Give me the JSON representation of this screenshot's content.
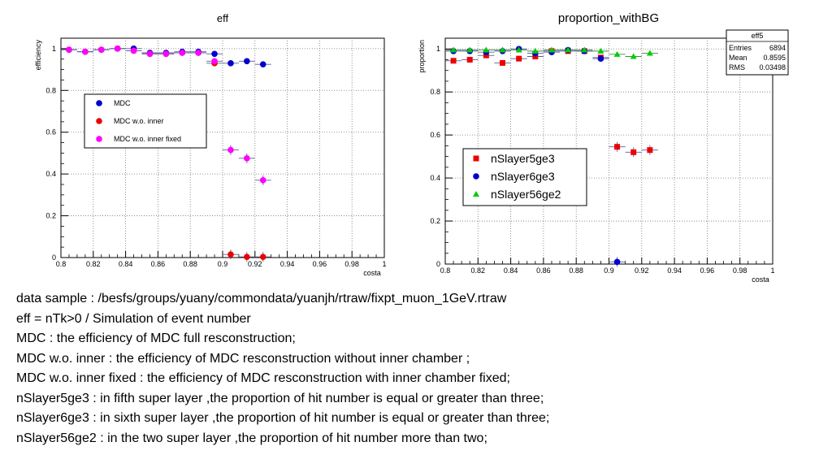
{
  "chart_data": [
    {
      "type": "scatter",
      "title": "eff",
      "xlabel": "costa",
      "ylabel": "efficiency",
      "xlim": [
        0.8,
        1.0
      ],
      "ylim": [
        0,
        1.05
      ],
      "x_ticks": [
        "0.8",
        "0.82",
        "0.84",
        "0.86",
        "0.88",
        "0.9",
        "0.92",
        "0.94",
        "0.96",
        "0.98",
        "1"
      ],
      "y_ticks": [
        "0",
        "0.2",
        "0.4",
        "0.6",
        "0.8",
        "1"
      ],
      "grid": true,
      "legend_position": "middle-left",
      "series": [
        {
          "name": "MDC",
          "color": "#0000cc",
          "x": [
            0.805,
            0.815,
            0.825,
            0.835,
            0.845,
            0.855,
            0.865,
            0.875,
            0.885,
            0.895,
            0.905,
            0.915,
            0.925
          ],
          "y": [
            0.995,
            0.985,
            0.995,
            1.0,
            1.0,
            0.98,
            0.98,
            0.985,
            0.985,
            0.975,
            0.93,
            0.94,
            0.925
          ]
        },
        {
          "name": "MDC w.o. inner",
          "color": "#ee0000",
          "x": [
            0.805,
            0.815,
            0.825,
            0.835,
            0.845,
            0.855,
            0.865,
            0.875,
            0.885,
            0.895,
            0.905,
            0.915,
            0.925
          ],
          "y": [
            0.995,
            0.985,
            0.995,
            1.0,
            0.99,
            0.975,
            0.975,
            0.98,
            0.98,
            0.93,
            0.015,
            0.003,
            0.003
          ]
        },
        {
          "name": "MDC w.o. inner fixed",
          "color": "#ff00ff",
          "x": [
            0.805,
            0.815,
            0.825,
            0.835,
            0.845,
            0.855,
            0.865,
            0.875,
            0.885,
            0.895,
            0.905,
            0.915,
            0.925
          ],
          "y": [
            0.995,
            0.985,
            0.995,
            1.0,
            0.99,
            0.975,
            0.975,
            0.98,
            0.98,
            0.94,
            0.515,
            0.475,
            0.37
          ]
        }
      ]
    },
    {
      "type": "scatter",
      "title": "proportion_withBG",
      "xlabel": "costa",
      "ylabel": "proportion",
      "xlim": [
        0.8,
        1.0
      ],
      "ylim": [
        0,
        1.05
      ],
      "x_ticks": [
        "0.8",
        "0.82",
        "0.84",
        "0.86",
        "0.88",
        "0.9",
        "0.92",
        "0.94",
        "0.96",
        "0.98",
        "1"
      ],
      "y_ticks": [
        "0",
        "0.2",
        "0.4",
        "0.6",
        "0.8",
        "1"
      ],
      "grid": true,
      "legend_position": "middle-left",
      "stats": {
        "name": "eff5",
        "rows": [
          {
            "label": "Entries",
            "value": "6894"
          },
          {
            "label": "Mean",
            "value": "0.8595"
          },
          {
            "label": "RMS",
            "value": "0.03498"
          }
        ]
      },
      "series": [
        {
          "name": "nSlayer5ge3",
          "color": "#ee0000",
          "marker": "square",
          "x": [
            0.805,
            0.815,
            0.825,
            0.835,
            0.845,
            0.855,
            0.865,
            0.875,
            0.885,
            0.895,
            0.905,
            0.915,
            0.925
          ],
          "y": [
            0.945,
            0.95,
            0.97,
            0.935,
            0.955,
            0.965,
            0.99,
            0.99,
            0.99,
            0.96,
            0.545,
            0.52,
            0.53
          ]
        },
        {
          "name": "nSlayer6ge3",
          "color": "#0000cc",
          "marker": "circle",
          "x": [
            0.805,
            0.815,
            0.825,
            0.835,
            0.845,
            0.855,
            0.865,
            0.875,
            0.885,
            0.895,
            0.905
          ],
          "y": [
            0.99,
            0.99,
            0.985,
            0.99,
            1.0,
            0.98,
            0.985,
            0.995,
            0.99,
            0.955,
            0.01
          ]
        },
        {
          "name": "nSlayer56ge2",
          "color": "#00cc00",
          "marker": "triangle",
          "x": [
            0.805,
            0.815,
            0.825,
            0.835,
            0.845,
            0.855,
            0.865,
            0.875,
            0.885,
            0.895,
            0.905,
            0.915,
            0.925
          ],
          "y": [
            0.995,
            0.995,
            0.995,
            0.995,
            0.995,
            0.99,
            0.995,
            0.995,
            0.995,
            0.99,
            0.975,
            0.965,
            0.98
          ]
        }
      ]
    }
  ],
  "notes": [
    "data sample : /besfs/groups/yuany/commondata/yuanjh/rtraw/fixpt_muon_1GeV.rtraw",
    "eff = nTk>0 / Simulation of event number",
    "MDC :  the efficiency of MDC full resconstruction;",
    "MDC w.o. inner : the efficiency of MDC  resconstruction  without inner chamber ;",
    "MDC w.o. inner fixed : the efficiency of MDC resconstruction with inner chamber fixed;",
    "nSlayer5ge3 : in fifth super layer ,the proportion of  hit number is equal or greater than three;",
    "nSlayer6ge3 :  in sixth  super layer ,the proportion of  hit number is equal or greater than three;",
    "nSlayer56ge2 : in the two super layer ,the proportion of  hit number more than two;"
  ]
}
